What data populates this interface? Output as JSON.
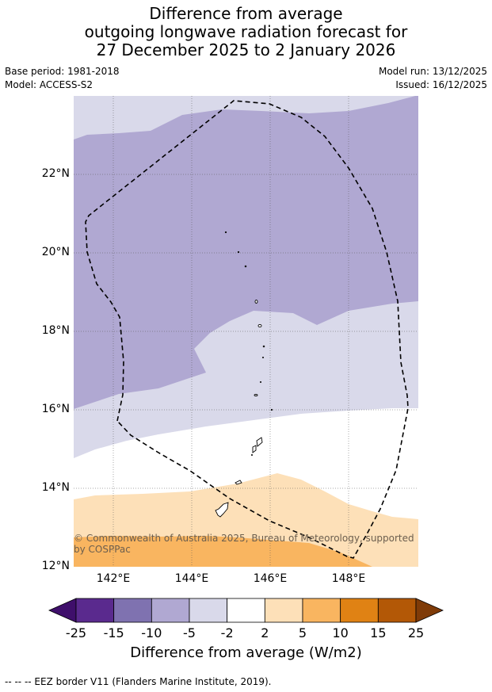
{
  "title": {
    "line1": "Difference from average",
    "line2": "outgoing longwave radiation forecast for",
    "line3": "27 December 2025 to 2 January 2026"
  },
  "meta": {
    "base_period": "Base period: 1981-2018",
    "model": "Model: ACCESS-S2",
    "model_run": "Model run: 13/12/2025",
    "issued": "Issued: 16/12/2025"
  },
  "map": {
    "lat_ticks": [
      "22°N",
      "20°N",
      "18°N",
      "16°N",
      "14°N",
      "12°N"
    ],
    "lon_ticks": [
      "142°E",
      "144°E",
      "146°E",
      "148°E"
    ],
    "copyright": "© Commonwealth of Australia 2025, Bureau of Meteorology, supported by COSPPac"
  },
  "colorbar": {
    "labels": [
      "-25",
      "-15",
      "-10",
      "-5",
      "-2",
      "2",
      "5",
      "10",
      "15",
      "25"
    ],
    "colors": [
      "#3f0f6b",
      "#5a2a8e",
      "#7f72b0",
      "#b0a8d2",
      "#d9d9ea",
      "#ffffff",
      "#fde0b8",
      "#f9b560",
      "#e08214",
      "#b35806",
      "#7f3b08"
    ],
    "title": "Difference from average (W/m2)"
  },
  "footer": "--  --  -- EEZ border V11 (Flanders Marine Institute, 2019)."
}
